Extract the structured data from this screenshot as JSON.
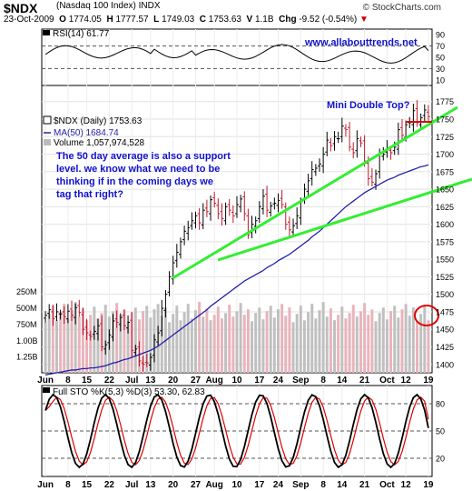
{
  "header": {
    "symbol": "$NDX",
    "name": "(Nasdaq 100 Index) INDX",
    "brand": "© StockCharts.com",
    "date": "23-Oct-2009",
    "open_label": "O",
    "open": "1774.05",
    "high_label": "H",
    "high": "1777.57",
    "low_label": "L",
    "low": "1749.03",
    "close_label": "C",
    "close": "1753.63",
    "vol_label": "V",
    "vol": "1.1B",
    "chg_label": "Chg",
    "chg": "-9.52 (-0.54%)"
  },
  "rsi": {
    "label": "RSI(14) 61.77",
    "ticks": [
      "90",
      "70",
      "50",
      "30",
      "10"
    ]
  },
  "price": {
    "legend_main": "$NDX (Daily) 1753.63",
    "legend_ma": "MA(50) 1684.74",
    "legend_vol": "Volume 1,057,974,528",
    "ticks": [
      "1775",
      "1750",
      "1725",
      "1700",
      "1675",
      "1650",
      "1625",
      "1600",
      "1575",
      "1550",
      "1525",
      "1500",
      "1475",
      "1450",
      "1425",
      "1400"
    ],
    "vol_ticks": [
      "1.25B",
      "1.00B",
      "750M",
      "500M",
      "250M"
    ]
  },
  "annotations": {
    "website": "www.allabouttrends.net",
    "mini_double_top": "Mini Double Top?",
    "comment": [
      "The 50 day average is also a support",
      "level. we know what we need to be",
      "thinking if in the coming days we",
      "tag that right?"
    ]
  },
  "sto": {
    "label": "Full STO %K(5,3) %D(3) 53.30, 62.83",
    "ticks": [
      "80",
      "50",
      "20"
    ]
  },
  "x_axis": {
    "labels": [
      "Jun",
      "8",
      "15",
      "22",
      "Jul",
      "13",
      "20",
      "27",
      "Aug",
      "10",
      "17",
      "24",
      "Sep",
      "8",
      "14",
      "21",
      "Oct",
      "12",
      "19"
    ]
  },
  "chart_data": {
    "type": "ohlc",
    "title": "$NDX (Nasdaq 100 Index) INDX",
    "period": "Daily",
    "ylim": [
      1388,
      1798
    ],
    "dates": [
      "6/1",
      "6/2",
      "6/3",
      "6/4",
      "6/5",
      "6/8",
      "6/9",
      "6/10",
      "6/11",
      "6/12",
      "6/15",
      "6/16",
      "6/17",
      "6/18",
      "6/19",
      "6/22",
      "6/23",
      "6/24",
      "6/25",
      "6/26",
      "6/29",
      "6/30",
      "7/1",
      "7/2",
      "7/6",
      "7/7",
      "7/8",
      "7/9",
      "7/10",
      "7/13",
      "7/14",
      "7/15",
      "7/16",
      "7/17",
      "7/20",
      "7/21",
      "7/22",
      "7/23",
      "7/24",
      "7/27",
      "7/28",
      "7/29",
      "7/30",
      "7/31",
      "8/3",
      "8/4",
      "8/5",
      "8/6",
      "8/7",
      "8/10",
      "8/11",
      "8/12",
      "8/13",
      "8/14",
      "8/17",
      "8/18",
      "8/19",
      "8/20",
      "8/21",
      "8/24",
      "8/25",
      "8/26",
      "8/27",
      "8/28",
      "8/31",
      "9/1",
      "9/2",
      "9/3",
      "9/4",
      "9/8",
      "9/9",
      "9/10",
      "9/11",
      "9/14",
      "9/15",
      "9/16",
      "9/17",
      "9/18",
      "9/21",
      "9/22",
      "9/23",
      "9/24",
      "9/25",
      "9/28",
      "9/29",
      "9/30",
      "10/1",
      "10/2",
      "10/5",
      "10/6",
      "10/7",
      "10/8",
      "10/9",
      "10/12",
      "10/13",
      "10/14",
      "10/15",
      "10/16",
      "10/19",
      "10/20",
      "10/21",
      "10/22",
      "10/23"
    ],
    "close": [
      1470,
      1478,
      1465,
      1475,
      1472,
      1468,
      1476,
      1470,
      1481,
      1474,
      1450,
      1445,
      1440,
      1447,
      1455,
      1425,
      1428,
      1442,
      1462,
      1460,
      1467,
      1455,
      1460,
      1420,
      1422,
      1405,
      1400,
      1402,
      1410,
      1435,
      1445,
      1480,
      1500,
      1525,
      1545,
      1560,
      1575,
      1590,
      1595,
      1605,
      1612,
      1602,
      1620,
      1618,
      1635,
      1630,
      1615,
      1608,
      1625,
      1620,
      1612,
      1628,
      1636,
      1615,
      1585,
      1600,
      1605,
      1625,
      1640,
      1620,
      1626,
      1630,
      1634,
      1628,
      1600,
      1592,
      1598,
      1612,
      1632,
      1650,
      1662,
      1678,
      1680,
      1686,
      1700,
      1720,
      1712,
      1725,
      1722,
      1740,
      1735,
      1710,
      1702,
      1722,
      1716,
      1690,
      1665,
      1660,
      1672,
      1700,
      1700,
      1708,
      1702,
      1710,
      1735,
      1727,
      1742,
      1745,
      1762,
      1745,
      1752,
      1763,
      1753.63
    ],
    "ma50": [
      1385,
      1386,
      1387,
      1388,
      1389,
      1390,
      1391,
      1392,
      1392,
      1393,
      1394,
      1394,
      1395,
      1395,
      1396,
      1397,
      1398,
      1400,
      1402,
      1403,
      1405,
      1407,
      1408,
      1410,
      1412,
      1414,
      1416,
      1418,
      1420,
      1423,
      1426,
      1430,
      1434,
      1438,
      1442,
      1446,
      1450,
      1454,
      1458,
      1462,
      1466,
      1470,
      1474,
      1478,
      1483,
      1487,
      1491,
      1495,
      1499,
      1503,
      1507,
      1511,
      1515,
      1519,
      1522,
      1525,
      1528,
      1531,
      1534,
      1538,
      1541,
      1544,
      1548,
      1551,
      1554,
      1557,
      1561,
      1565,
      1569,
      1573,
      1577,
      1582,
      1586,
      1590,
      1595,
      1600,
      1605,
      1610,
      1615,
      1620,
      1625,
      1629,
      1633,
      1637,
      1641,
      1645,
      1648,
      1651,
      1654,
      1657,
      1660,
      1663,
      1665,
      1667,
      1670,
      1672,
      1674,
      1676,
      1678,
      1680,
      1682,
      1683,
      1684.74
    ],
    "volume_ticks_M": [
      250,
      500,
      750,
      1000,
      1250
    ],
    "rsi_last": 61.77,
    "sto_k_last": 53.3,
    "sto_d_last": 62.83,
    "sto_ylim": [
      0,
      100
    ]
  }
}
